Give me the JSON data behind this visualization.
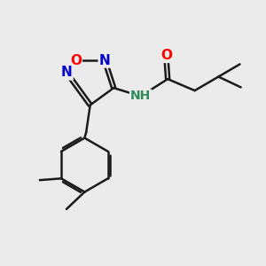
{
  "background_color": "#ebebeb",
  "bond_color": "#1a1a1a",
  "atom_colors": {
    "O": "#ff0000",
    "N": "#0000cc",
    "NH": "#2e8b57",
    "C": "#1a1a1a"
  },
  "font_size": 11
}
